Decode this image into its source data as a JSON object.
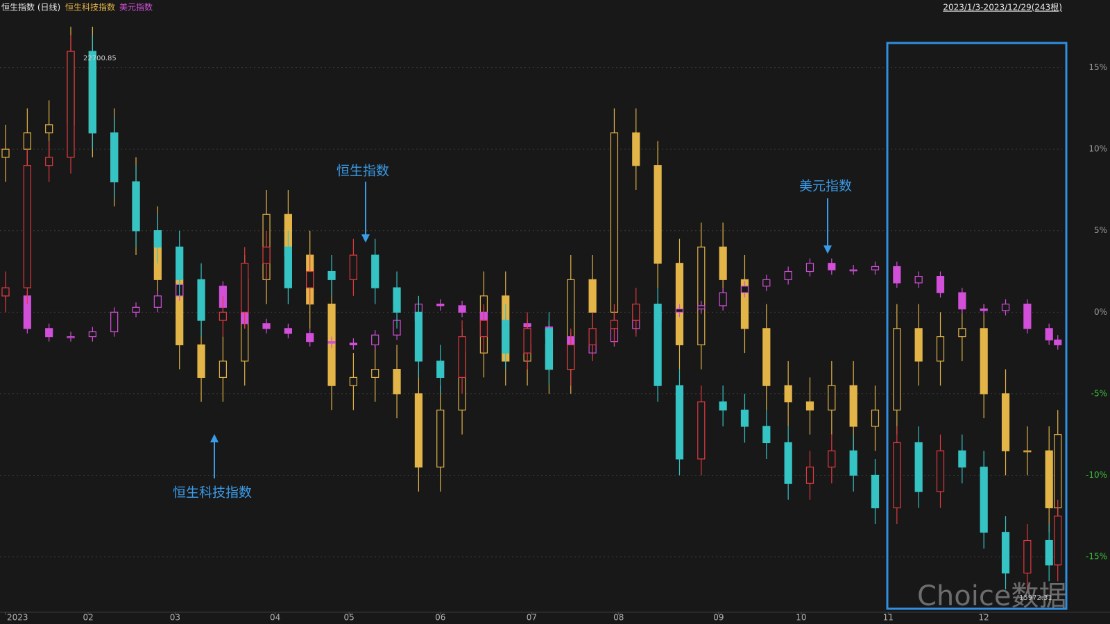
{
  "chart_data": {
    "type": "candlestick",
    "title": "恒生指数 (日线)",
    "date_range": "2023/1/3-2023/12/29(243根)",
    "xlim": [
      0,
      243
    ],
    "xticks": [
      {
        "value": 0,
        "label": "2023"
      },
      {
        "value": 19,
        "label": "02"
      },
      {
        "value": 39,
        "label": "03"
      },
      {
        "value": 62,
        "label": "04"
      },
      {
        "value": 79,
        "label": "05"
      },
      {
        "value": 100,
        "label": "06"
      },
      {
        "value": 121,
        "label": "07"
      },
      {
        "value": 141,
        "label": "08"
      },
      {
        "value": 164,
        "label": "09"
      },
      {
        "value": 183,
        "label": "10"
      },
      {
        "value": 203,
        "label": "11"
      },
      {
        "value": 225,
        "label": "12"
      }
    ],
    "ylim": [
      -18.4,
      18.3
    ],
    "yticks": [
      {
        "value": 15,
        "label": "15%"
      },
      {
        "value": 10,
        "label": "10%"
      },
      {
        "value": 5,
        "label": "5%"
      },
      {
        "value": 0,
        "label": "0%"
      },
      {
        "value": -5,
        "label": "-5%"
      },
      {
        "value": -10,
        "label": "-10%"
      },
      {
        "value": -15,
        "label": "-15%"
      }
    ],
    "grid": true,
    "x": [
      0,
      5,
      10,
      15,
      20,
      25,
      30,
      35,
      40,
      45,
      50,
      55,
      60,
      65,
      70,
      75,
      80,
      85,
      90,
      95,
      100,
      105,
      110,
      115,
      120,
      125,
      130,
      135,
      140,
      145,
      150,
      155,
      160,
      165,
      170,
      175,
      180,
      185,
      190,
      195,
      200,
      205,
      210,
      215,
      220,
      225,
      230,
      235,
      240,
      242
    ],
    "series": [
      {
        "name": "恒生科技指数",
        "up_color": "#e3b448",
        "down_color": "#e3b448",
        "open": [
          9.5,
          10,
          11,
          11.5,
          16,
          11,
          8,
          5,
          2,
          -2,
          -4,
          -3,
          2,
          6,
          3.5,
          0.5,
          -4.5,
          -4,
          -3.5,
          -5,
          -9.5,
          -6,
          -2.5,
          1,
          -3,
          -2,
          -3.5,
          2,
          0,
          11,
          9,
          3,
          -2,
          4,
          2,
          -1,
          -4.5,
          -5.5,
          -6,
          -4.5,
          -7,
          -6,
          -1,
          -3,
          -1.5,
          -1,
          -5,
          -8.5,
          -8.5,
          -12
        ],
        "high": [
          11.5,
          12.5,
          13,
          17.5,
          17.5,
          12.5,
          9.5,
          6.5,
          3.5,
          -0.5,
          -1.5,
          3.5,
          7.5,
          7.5,
          5,
          2,
          -2.5,
          -2,
          -2,
          -3.5,
          -4.5,
          -1,
          2.5,
          2.5,
          -0.5,
          -0.5,
          3.5,
          3.5,
          12.5,
          12.5,
          10.5,
          4.5,
          5.5,
          5.5,
          3.5,
          0.5,
          -3,
          -4,
          -3,
          -3,
          -4.5,
          0.5,
          0.5,
          0,
          0.5,
          0.5,
          -3.5,
          -7,
          -7,
          -6
        ],
        "low": [
          8,
          8.5,
          9.5,
          10,
          9.5,
          6.5,
          3.5,
          0.5,
          -3.5,
          -5.5,
          -5.5,
          -4.5,
          0.5,
          2,
          -1,
          -6,
          -6,
          -5.5,
          -6.5,
          -11,
          -11,
          -7.5,
          -4,
          -4.5,
          -4.5,
          -5,
          -5,
          -1.5,
          -1.5,
          7.5,
          1.5,
          -3.5,
          -3.5,
          0.5,
          -2.5,
          -6,
          -7,
          -7.5,
          -7.5,
          -8.5,
          -8.5,
          -7.5,
          -4.5,
          -4.5,
          -3,
          -6.5,
          -10,
          -10,
          -13.5,
          -13.5
        ],
        "close": [
          10,
          11,
          11.5,
          16,
          11,
          8,
          5,
          2,
          -2,
          -4,
          -3,
          2,
          6,
          3.5,
          0.5,
          -4.5,
          -4,
          -3.5,
          -5,
          -9.5,
          -6,
          -2.5,
          1,
          -3,
          -2,
          -3.5,
          2,
          0,
          11,
          9,
          3,
          -2,
          4,
          2,
          -1,
          -4.5,
          -5.5,
          -6,
          -4.5,
          -7,
          -6,
          -1,
          -3,
          -1.5,
          -1,
          -5,
          -8.5,
          -8.5,
          -12,
          -7.5
        ]
      },
      {
        "name": "美元指数",
        "up_color": "#d24fd9",
        "down_color": "#d24fd9",
        "open": [
          1.2,
          1,
          -1,
          -1.5,
          -1.5,
          -1.2,
          0,
          0.3,
          1,
          1.7,
          1.6,
          0.3,
          -0.7,
          -1,
          -1.3,
          -1.8,
          -1.9,
          -2,
          -1.4,
          -0.5,
          0.5,
          0.4,
          0,
          -0.6,
          -0.7,
          -0.9,
          -1.5,
          -2.5,
          -1.8,
          -1,
          -0.5,
          0,
          0.2,
          0.4,
          1.2,
          1.6,
          2,
          2.5,
          3,
          2.6,
          2.6,
          2.8,
          1.8,
          2.2,
          1.2,
          0.2,
          0.1,
          0.5,
          -1,
          -1.7
        ],
        "high": [
          1.5,
          1.3,
          -0.7,
          -1.2,
          -0.9,
          0.3,
          0.6,
          1.3,
          2,
          2,
          1.9,
          0.6,
          -0.4,
          -0.7,
          -1,
          -1.5,
          -1.6,
          -1.1,
          -0.2,
          0.8,
          0.8,
          0.7,
          0.3,
          -0.3,
          -0.4,
          -0.6,
          -1.2,
          -1.5,
          -0.7,
          -0.2,
          0.3,
          0.5,
          0.7,
          1.5,
          1.9,
          2.3,
          2.8,
          3.3,
          3.3,
          2.9,
          3.1,
          3.1,
          2.5,
          2.5,
          1.5,
          0.5,
          0.8,
          0.8,
          -0.7,
          -1.4
        ],
        "low": [
          0.7,
          -1.3,
          -1.8,
          -1.8,
          -1.8,
          -1.5,
          -0.3,
          0,
          0.7,
          1.3,
          0,
          -1,
          -1.3,
          -1.6,
          -2.1,
          -2.2,
          -2.3,
          -2.3,
          -1.7,
          -0.8,
          0.1,
          -0.3,
          -0.9,
          -1,
          -1.2,
          -1.8,
          -2.8,
          -2.8,
          -2.1,
          -1.3,
          -0.8,
          -0.3,
          -0.1,
          0.1,
          0.9,
          1.3,
          1.7,
          2.2,
          2.3,
          2.3,
          2.3,
          1.5,
          1.5,
          0.9,
          -0.1,
          -0.2,
          -0.2,
          -1.3,
          -2,
          -2.3
        ],
        "close": [
          1,
          -1,
          -1.5,
          -1.5,
          -1.2,
          0,
          0.3,
          1,
          1.7,
          1.6,
          0.3,
          -0.7,
          -1,
          -1.3,
          -1.8,
          -1.9,
          -2,
          -1.4,
          -0.5,
          0.5,
          0.4,
          0,
          -0.6,
          -0.7,
          -0.9,
          -1.5,
          -2.5,
          -1.8,
          -1,
          -0.5,
          0,
          0.2,
          0.4,
          1.2,
          1.6,
          2,
          2.5,
          3,
          2.6,
          2.6,
          2.8,
          1.8,
          2.2,
          1.2,
          0.2,
          0.1,
          0.5,
          -1,
          -1.7,
          -2
        ]
      },
      {
        "name": "恒生指数",
        "up_color": "#e2393f",
        "down_color": "#35c3c4",
        "open": [
          1,
          1.5,
          9,
          9.5,
          16,
          11,
          8,
          5,
          4,
          2,
          -0.5,
          0,
          3,
          4,
          1.5,
          2.5,
          2,
          3.5,
          1.5,
          0,
          -3,
          -4,
          -1.5,
          -0.5,
          -2.5,
          -1,
          -3.5,
          -2,
          -1,
          -0.5,
          0.5,
          -4.5,
          -9,
          -5.5,
          -6,
          -7,
          -8,
          -10.5,
          -9.5,
          -8.5,
          -10,
          -12,
          -8,
          -11,
          -8.5,
          -9.5,
          -13.5,
          -16,
          -14,
          -15.5
        ],
        "high": [
          2.5,
          10,
          10.5,
          17,
          17,
          12,
          9,
          6,
          5,
          3,
          1,
          4,
          5,
          5,
          3.5,
          3.5,
          4.5,
          4.5,
          2.5,
          1,
          -2,
          -0.5,
          0.5,
          0.5,
          0,
          0,
          -1,
          0,
          0.5,
          1.5,
          1.5,
          -3.5,
          -4.5,
          -4.5,
          -5,
          -6,
          -7,
          -8.5,
          -7.5,
          -7.5,
          -9,
          -7,
          -7,
          -7.5,
          -7.5,
          -8.5,
          -12.5,
          -13,
          -13,
          -11.5
        ],
        "low": [
          0,
          0.5,
          8,
          8.5,
          10,
          7,
          4,
          3,
          1,
          -1.5,
          -1.5,
          -1,
          2,
          0.5,
          0.5,
          1,
          1,
          0.5,
          -1,
          -4,
          -5,
          -5,
          -2.5,
          -3.5,
          -3.5,
          -4.5,
          -4.5,
          -3,
          -2,
          -1.5,
          -5.5,
          -10,
          -10,
          -7,
          -8,
          -9,
          -11.5,
          -11.5,
          -10.5,
          -11,
          -13,
          -13,
          -12,
          -12,
          -10.5,
          -14.5,
          -17,
          -17,
          -16.5,
          -16.5
        ],
        "close": [
          1.5,
          9,
          9.5,
          16,
          11,
          8,
          5,
          4,
          2,
          -0.5,
          0,
          3,
          4,
          1.5,
          2.5,
          2,
          3.5,
          1.5,
          0,
          -3,
          -4,
          -1.5,
          -0.5,
          -2.5,
          -1,
          -3.5,
          -2,
          -1,
          -0.5,
          0.5,
          -4.5,
          -9,
          -5.5,
          -6,
          -7,
          -8,
          -10.5,
          -9.5,
          -8.5,
          -10,
          -12,
          -8,
          -11,
          -8.5,
          -9.5,
          -13.5,
          -16,
          -14,
          -15.5,
          -12.5
        ]
      }
    ],
    "max_label": "22700.85",
    "min_label": "15972.31",
    "watermark": "Choice数据"
  }
}
